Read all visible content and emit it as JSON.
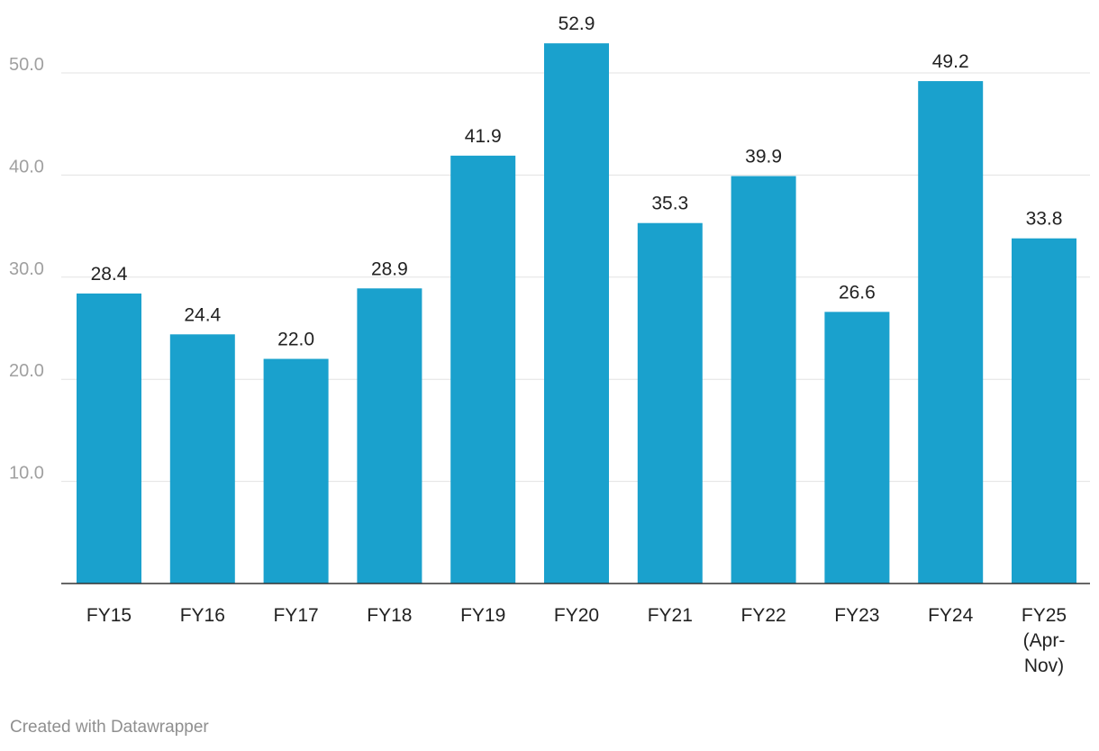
{
  "chart_data": {
    "type": "bar",
    "title": "",
    "xlabel": "",
    "ylabel": "",
    "categories": [
      "FY15",
      "FY16",
      "FY17",
      "FY18",
      "FY19",
      "FY20",
      "FY21",
      "FY22",
      "FY23",
      "FY24",
      "FY25 (Apr-Nov)"
    ],
    "category_lines": [
      [
        "FY15"
      ],
      [
        "FY16"
      ],
      [
        "FY17"
      ],
      [
        "FY18"
      ],
      [
        "FY19"
      ],
      [
        "FY20"
      ],
      [
        "FY21"
      ],
      [
        "FY22"
      ],
      [
        "FY23"
      ],
      [
        "FY24"
      ],
      [
        "FY25",
        "(Apr-",
        "Nov)"
      ]
    ],
    "values": [
      28.4,
      24.4,
      22.0,
      28.9,
      41.9,
      52.9,
      35.3,
      39.9,
      26.6,
      49.2,
      33.8
    ],
    "value_labels": [
      "28.4",
      "24.4",
      "22.0",
      "28.9",
      "41.9",
      "52.9",
      "35.3",
      "39.9",
      "26.6",
      "49.2",
      "33.8"
    ],
    "yticks": [
      10.0,
      20.0,
      30.0,
      40.0,
      50.0
    ],
    "ytick_labels": [
      "10.0",
      "20.0",
      "30.0",
      "40.0",
      "50.0"
    ],
    "ylim": [
      0,
      56
    ],
    "grid": true,
    "legend": "none",
    "bar_color": "#1aa1cd"
  },
  "footer": {
    "credit": "Created with Datawrapper"
  }
}
